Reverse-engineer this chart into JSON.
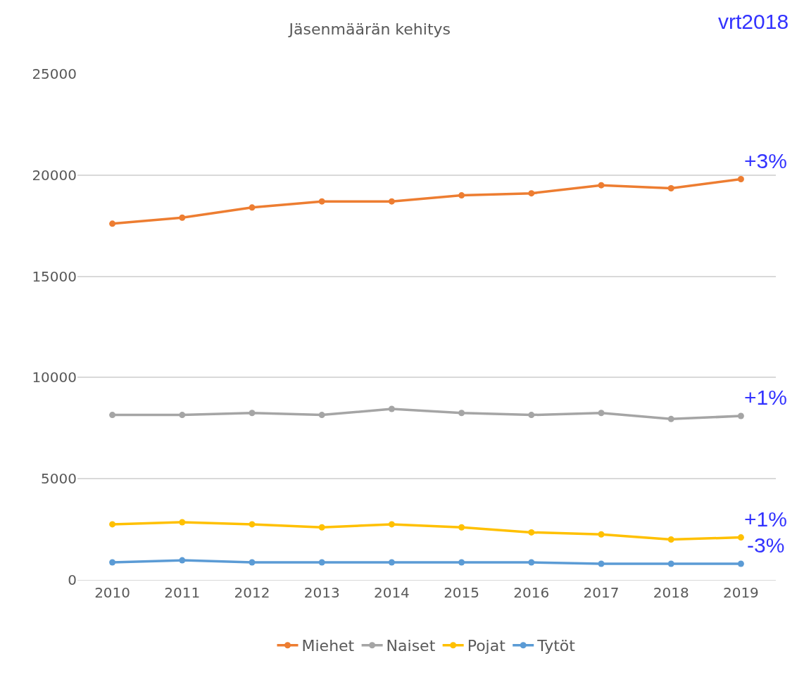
{
  "chart_data": {
    "type": "line",
    "title": "Jäsenmäärän kehitys",
    "x": [
      2010,
      2011,
      2012,
      2013,
      2014,
      2015,
      2016,
      2017,
      2018,
      2019
    ],
    "xlim": [
      2009.5,
      2019.5
    ],
    "xticks": [
      2010,
      2011,
      2012,
      2013,
      2014,
      2015,
      2016,
      2017,
      2018,
      2019
    ],
    "ylim": [
      0,
      25000
    ],
    "yticks": [
      0,
      5000,
      10000,
      15000,
      20000,
      25000
    ],
    "series": [
      {
        "name": "Miehet",
        "color": "#ed7d31",
        "values": [
          17600,
          17900,
          18400,
          18700,
          18700,
          19000,
          19100,
          19500,
          19350,
          19800
        ]
      },
      {
        "name": "Naiset",
        "color": "#a5a5a5",
        "values": [
          8150,
          8150,
          8250,
          8150,
          8450,
          8250,
          8150,
          8250,
          7950,
          8100
        ]
      },
      {
        "name": "Pojat",
        "color": "#ffc000",
        "values": [
          2750,
          2850,
          2750,
          2600,
          2750,
          2600,
          2350,
          2250,
          2000,
          2100
        ]
      },
      {
        "name": "Tytöt",
        "color": "#5b9bd5",
        "values": [
          870,
          970,
          870,
          870,
          870,
          870,
          870,
          800,
          800,
          800
        ]
      }
    ],
    "annotations": [
      "vrt2018",
      "+3%",
      "+1%",
      "+1%",
      "-3%"
    ],
    "grid": "y",
    "legend": "bottom",
    "marker": "circle",
    "line_style": "solid"
  }
}
